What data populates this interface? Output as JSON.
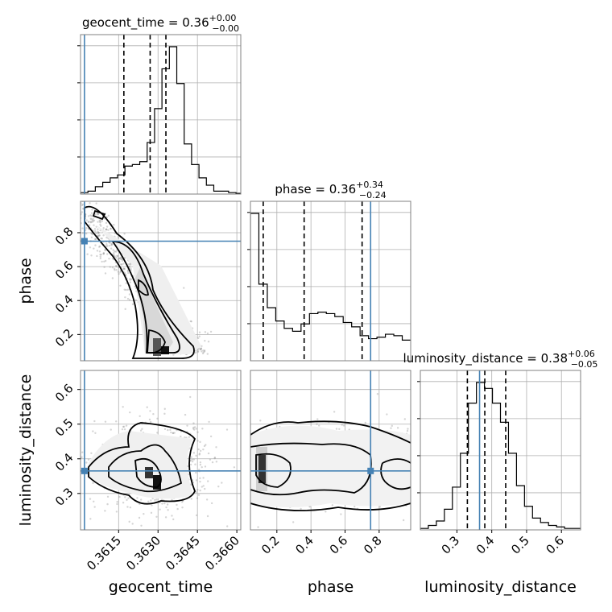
{
  "chart_data": {
    "type": "corner",
    "parameters": [
      "geocent_time",
      "phase",
      "luminosity_distance"
    ],
    "titles": [
      {
        "label": "geocent_time = 0.36",
        "sup": "+0.00",
        "sub": "−0.00"
      },
      {
        "label": "phase = 0.36",
        "sup": "+0.34",
        "sub": "−0.24"
      },
      {
        "label": "luminosity_distance = 0.38",
        "sup": "+0.06",
        "sub": "−0.05"
      }
    ],
    "axis_labels": [
      "geocent_time",
      "phase",
      "luminosity_distance"
    ],
    "ranges": {
      "geocent_time": [
        0.36005,
        0.36615
      ],
      "phase": [
        0.045,
        0.985
      ],
      "luminosity_distance": [
        0.195,
        0.655
      ]
    },
    "ticks": {
      "geocent_time": {
        "values": [
          0.3615,
          0.363,
          0.3645,
          0.366
        ],
        "labels": [
          "0.3615",
          "0.3630",
          "0.3645",
          "0.3660"
        ]
      },
      "phase": {
        "values": [
          0.2,
          0.4,
          0.6,
          0.8
        ],
        "labels": [
          "0.2",
          "0.4",
          "0.6",
          "0.8"
        ]
      },
      "luminosity_distance": {
        "values": [
          0.3,
          0.4,
          0.5,
          0.6
        ],
        "labels": [
          "0.3",
          "0.4",
          "0.5",
          "0.6"
        ]
      }
    },
    "truths": {
      "geocent_time": 0.3602,
      "phase": 0.75,
      "luminosity_distance": 0.365
    },
    "quantiles": {
      "geocent_time": [
        0.3617,
        0.3627,
        0.3633
      ],
      "phase": [
        0.12,
        0.36,
        0.7
      ],
      "luminosity_distance": [
        0.33,
        0.38,
        0.44
      ]
    },
    "histograms": {
      "geocent_time": {
        "bins": [
          0.36005,
          0.36625
        ],
        "counts": [
          0.01,
          0.02,
          0.05,
          0.08,
          0.11,
          0.13,
          0.19,
          0.2,
          0.22,
          0.35,
          0.58,
          0.85,
          1.0,
          0.75,
          0.34,
          0.2,
          0.11,
          0.06,
          0.02,
          0.02,
          0.01,
          0.005
        ]
      },
      "phase": {
        "bins": [
          0.045,
          0.985
        ],
        "counts": [
          1.0,
          0.52,
          0.36,
          0.27,
          0.22,
          0.2,
          0.25,
          0.32,
          0.33,
          0.32,
          0.3,
          0.26,
          0.23,
          0.17,
          0.15,
          0.16,
          0.18,
          0.17,
          0.14
        ]
      },
      "luminosity_distance": {
        "bins": [
          0.195,
          0.655
        ],
        "counts": [
          0.01,
          0.03,
          0.06,
          0.14,
          0.29,
          0.52,
          0.86,
          1.0,
          0.96,
          0.86,
          0.73,
          0.52,
          0.3,
          0.16,
          0.08,
          0.05,
          0.03,
          0.02,
          0.01,
          0.01
        ]
      }
    },
    "grid": true,
    "colors": {
      "truth": "#4682b4",
      "contour": "#000000",
      "scatter": "#888888",
      "frame": "#808080"
    }
  }
}
